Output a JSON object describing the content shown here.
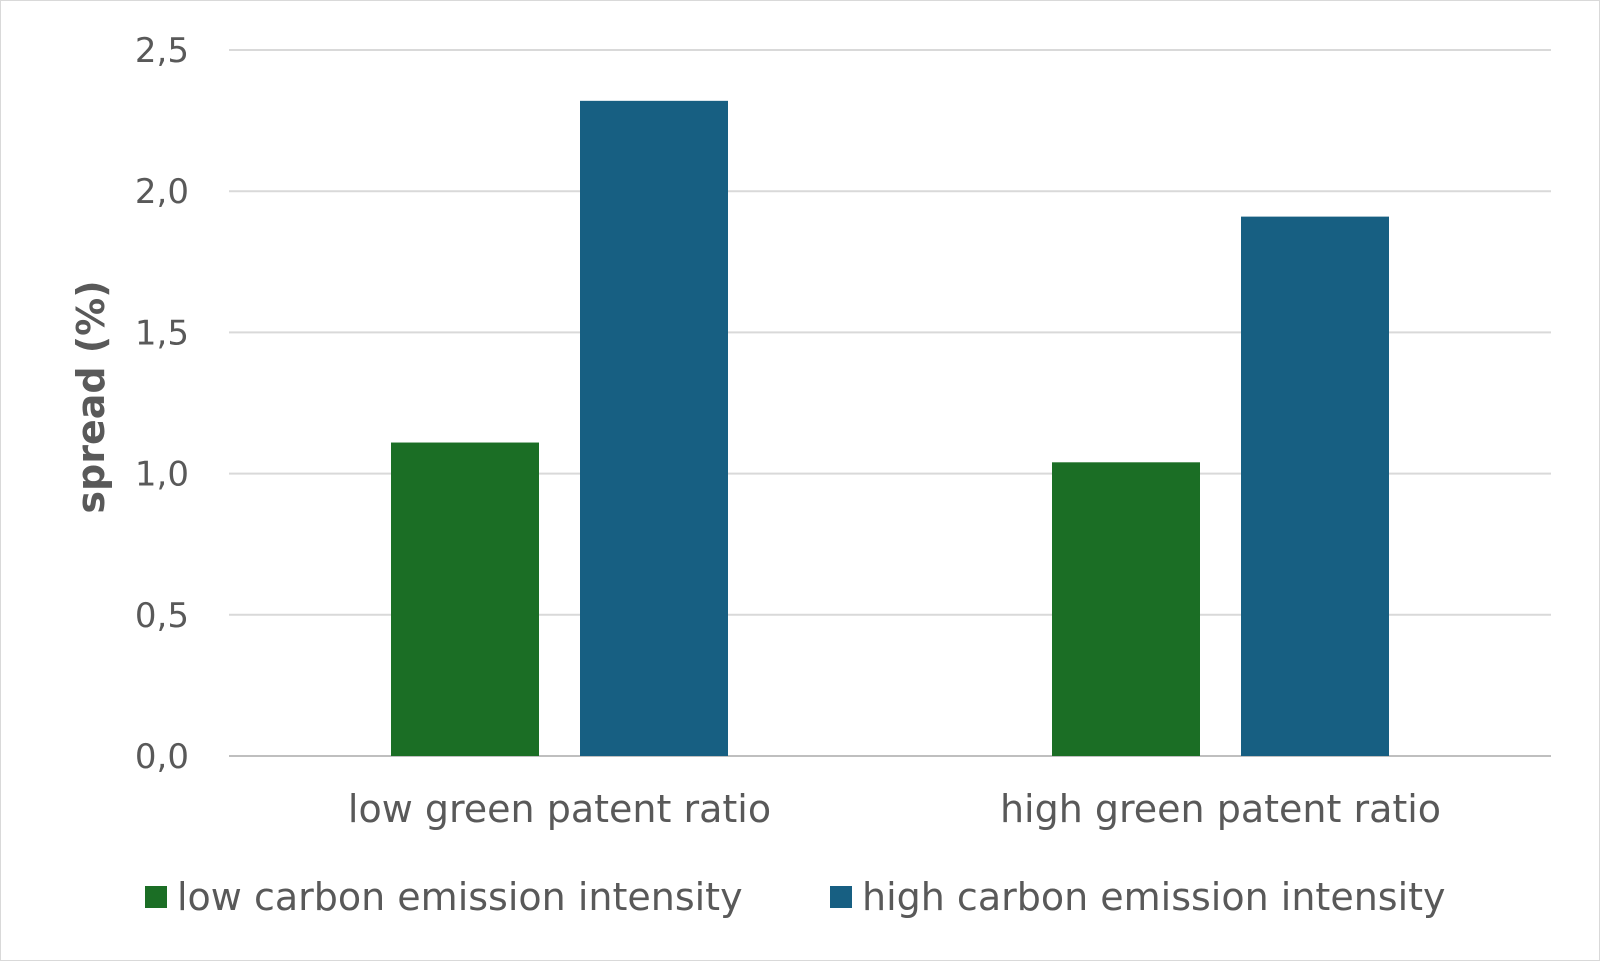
{
  "chart_data": {
    "type": "bar",
    "categories": [
      "low green patent ratio",
      "high green patent ratio"
    ],
    "series": [
      {
        "name": "low carbon emission intensity",
        "color": "#1b6e25",
        "values": [
          1.11,
          1.04
        ]
      },
      {
        "name": "high carbon emission intensity",
        "color": "#175f82",
        "values": [
          2.32,
          1.91
        ]
      }
    ],
    "ylabel": "spread (%)",
    "xlabel": "",
    "ylim": [
      0,
      2.5
    ],
    "yticks": [
      0,
      0.5,
      1,
      1.5,
      2,
      2.5
    ],
    "ytick_labels": [
      "0,0",
      "0,5",
      "1,0",
      "1,5",
      "2,0",
      "2,5"
    ],
    "grid": true,
    "legend": "bottom"
  }
}
